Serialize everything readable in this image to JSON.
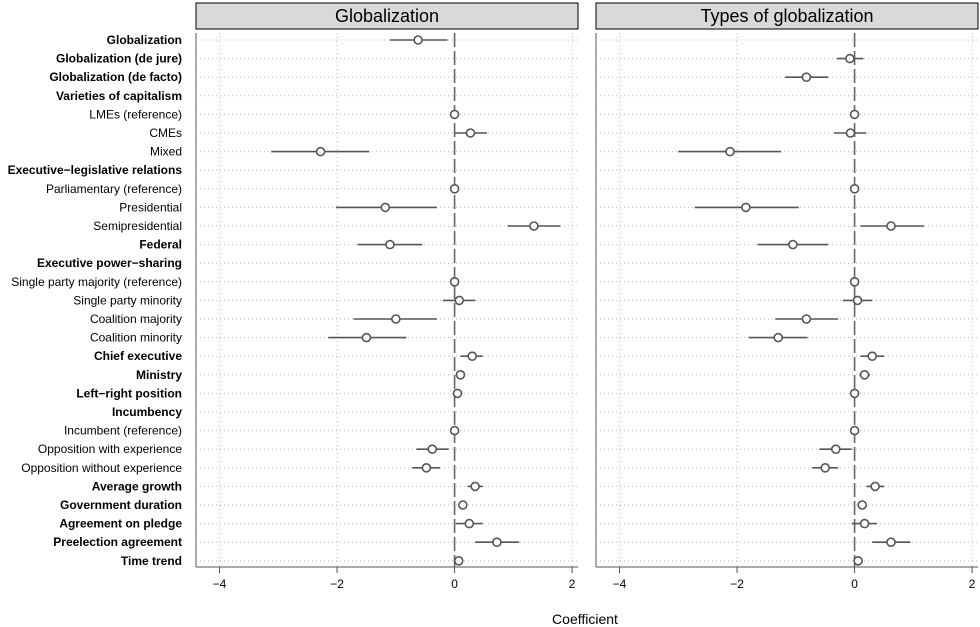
{
  "chart_data": {
    "type": "scatter",
    "xlabel": "Coefficient",
    "xlim": [
      -4.4,
      2.1
    ],
    "xticks": [
      -4,
      -2,
      0,
      2
    ],
    "xtick_labels": [
      "−4",
      "−2",
      "0",
      "2"
    ],
    "grid": true,
    "reference_line": 0,
    "rows": [
      {
        "label": "Globalization",
        "bold": true
      },
      {
        "label": "Globalization (de jure)",
        "bold": true
      },
      {
        "label": "Globalization (de facto)",
        "bold": true
      },
      {
        "label": "Varieties of capitalism",
        "bold": true
      },
      {
        "label": "LMEs (reference)",
        "bold": false
      },
      {
        "label": "CMEs",
        "bold": false
      },
      {
        "label": "Mixed",
        "bold": false
      },
      {
        "label": "Executive−legislative relations",
        "bold": true
      },
      {
        "label": "Parliamentary (reference)",
        "bold": false
      },
      {
        "label": "Presidential",
        "bold": false
      },
      {
        "label": "Semipresidential",
        "bold": false
      },
      {
        "label": "Federal",
        "bold": true
      },
      {
        "label": "Executive power−sharing",
        "bold": true
      },
      {
        "label": "Single party majority (reference)",
        "bold": false
      },
      {
        "label": "Single party minority",
        "bold": false
      },
      {
        "label": "Coalition majority",
        "bold": false
      },
      {
        "label": "Coalition minority",
        "bold": false
      },
      {
        "label": "Chief executive",
        "bold": true
      },
      {
        "label": "Ministry",
        "bold": true
      },
      {
        "label": "Left−right position",
        "bold": true
      },
      {
        "label": "Incumbency",
        "bold": true
      },
      {
        "label": "Incumbent (reference)",
        "bold": false
      },
      {
        "label": "Opposition with experience",
        "bold": false
      },
      {
        "label": "Opposition without experience",
        "bold": false
      },
      {
        "label": "Average growth",
        "bold": true
      },
      {
        "label": "Government duration",
        "bold": true
      },
      {
        "label": "Agreement on pledge",
        "bold": true
      },
      {
        "label": "Preelection agreement",
        "bold": true
      },
      {
        "label": "Time trend",
        "bold": true
      }
    ],
    "panels": [
      {
        "title": "Globalization",
        "points": [
          {
            "row": 0,
            "est": -0.62,
            "lo": -1.1,
            "hi": -0.12
          },
          {
            "row": 4,
            "est": 0.0,
            "lo": 0.0,
            "hi": 0.0
          },
          {
            "row": 5,
            "est": 0.27,
            "lo": 0.0,
            "hi": 0.55
          },
          {
            "row": 6,
            "est": -2.28,
            "lo": -3.12,
            "hi": -1.45
          },
          {
            "row": 8,
            "est": 0.0,
            "lo": 0.0,
            "hi": 0.0
          },
          {
            "row": 9,
            "est": -1.18,
            "lo": -2.02,
            "hi": -0.3
          },
          {
            "row": 10,
            "est": 1.35,
            "lo": 0.9,
            "hi": 1.8
          },
          {
            "row": 11,
            "est": -1.1,
            "lo": -1.65,
            "hi": -0.55
          },
          {
            "row": 13,
            "est": 0.0,
            "lo": 0.0,
            "hi": 0.0
          },
          {
            "row": 14,
            "est": 0.08,
            "lo": -0.2,
            "hi": 0.35
          },
          {
            "row": 15,
            "est": -1.0,
            "lo": -1.72,
            "hi": -0.3
          },
          {
            "row": 16,
            "est": -1.5,
            "lo": -2.15,
            "hi": -0.82
          },
          {
            "row": 17,
            "est": 0.3,
            "lo": 0.1,
            "hi": 0.48
          },
          {
            "row": 18,
            "est": 0.1,
            "lo": 0.02,
            "hi": 0.18
          },
          {
            "row": 19,
            "est": 0.05,
            "lo": -0.03,
            "hi": 0.13
          },
          {
            "row": 21,
            "est": 0.0,
            "lo": 0.0,
            "hi": 0.0
          },
          {
            "row": 22,
            "est": -0.38,
            "lo": -0.65,
            "hi": -0.1
          },
          {
            "row": 23,
            "est": -0.48,
            "lo": -0.72,
            "hi": -0.25
          },
          {
            "row": 24,
            "est": 0.35,
            "lo": 0.22,
            "hi": 0.48
          },
          {
            "row": 25,
            "est": 0.14,
            "lo": 0.08,
            "hi": 0.2
          },
          {
            "row": 26,
            "est": 0.25,
            "lo": 0.02,
            "hi": 0.48
          },
          {
            "row": 27,
            "est": 0.72,
            "lo": 0.35,
            "hi": 1.1
          },
          {
            "row": 28,
            "est": 0.07,
            "lo": 0.03,
            "hi": 0.11
          }
        ]
      },
      {
        "title": "Types of globalization",
        "points": [
          {
            "row": 1,
            "est": -0.08,
            "lo": -0.3,
            "hi": 0.15
          },
          {
            "row": 2,
            "est": -0.82,
            "lo": -1.18,
            "hi": -0.45
          },
          {
            "row": 4,
            "est": 0.0,
            "lo": 0.0,
            "hi": 0.0
          },
          {
            "row": 5,
            "est": -0.07,
            "lo": -0.35,
            "hi": 0.2
          },
          {
            "row": 6,
            "est": -2.12,
            "lo": -3.0,
            "hi": -1.25
          },
          {
            "row": 8,
            "est": 0.0,
            "lo": 0.0,
            "hi": 0.0
          },
          {
            "row": 9,
            "est": -1.85,
            "lo": -2.72,
            "hi": -0.95
          },
          {
            "row": 10,
            "est": 0.62,
            "lo": 0.1,
            "hi": 1.18
          },
          {
            "row": 11,
            "est": -1.05,
            "lo": -1.65,
            "hi": -0.45
          },
          {
            "row": 13,
            "est": 0.0,
            "lo": 0.0,
            "hi": 0.0
          },
          {
            "row": 14,
            "est": 0.05,
            "lo": -0.2,
            "hi": 0.3
          },
          {
            "row": 15,
            "est": -0.82,
            "lo": -1.35,
            "hi": -0.28
          },
          {
            "row": 16,
            "est": -1.3,
            "lo": -1.8,
            "hi": -0.8
          },
          {
            "row": 17,
            "est": 0.3,
            "lo": 0.1,
            "hi": 0.5
          },
          {
            "row": 18,
            "est": 0.17,
            "lo": 0.08,
            "hi": 0.26
          },
          {
            "row": 19,
            "est": 0.0,
            "lo": -0.08,
            "hi": 0.08
          },
          {
            "row": 21,
            "est": 0.0,
            "lo": 0.0,
            "hi": 0.0
          },
          {
            "row": 22,
            "est": -0.32,
            "lo": -0.6,
            "hi": -0.05
          },
          {
            "row": 23,
            "est": -0.5,
            "lo": -0.72,
            "hi": -0.28
          },
          {
            "row": 24,
            "est": 0.35,
            "lo": 0.2,
            "hi": 0.5
          },
          {
            "row": 25,
            "est": 0.13,
            "lo": 0.06,
            "hi": 0.2
          },
          {
            "row": 26,
            "est": 0.17,
            "lo": -0.05,
            "hi": 0.38
          },
          {
            "row": 27,
            "est": 0.62,
            "lo": 0.3,
            "hi": 0.95
          },
          {
            "row": 28,
            "est": 0.06,
            "lo": 0.02,
            "hi": 0.1
          }
        ]
      }
    ]
  }
}
